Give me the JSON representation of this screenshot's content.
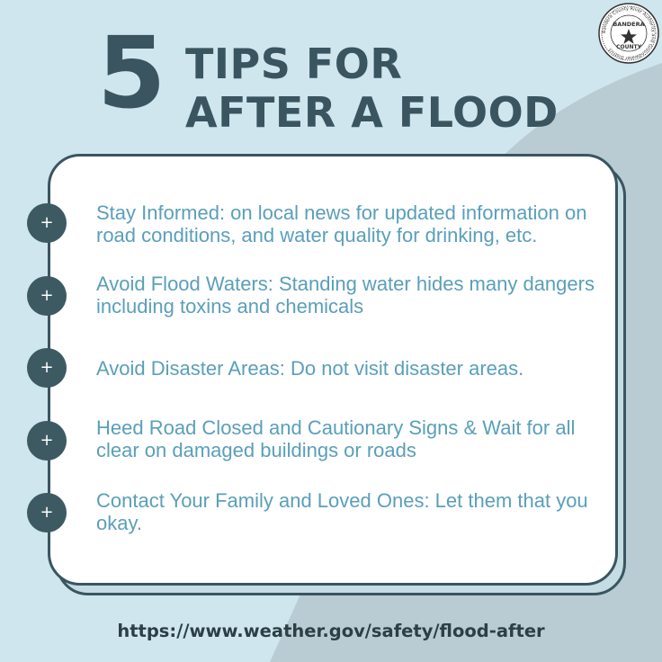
{
  "title": {
    "number": "5",
    "line1": "TIPS FOR",
    "line2": "AFTER A FLOOD"
  },
  "logo": {
    "icon": "county-seal-icon",
    "ring_text": "Bandera County River Authority and Groundwater District",
    "center_line1": "BANDERA",
    "center_line2": "COUNTY"
  },
  "bullet_symbol": "+",
  "tips": [
    {
      "text": "Stay Informed: on local news for updated information on road conditions, and water quality for drinking, etc."
    },
    {
      "text": "Avoid Flood Waters: Standing water hides many dangers including toxins and chemicals"
    },
    {
      "text": "Avoid Disaster Areas: Do not visit disaster areas."
    },
    {
      "text": "Heed Road Closed and Cautionary Signs & Wait for all clear on damaged buildings or roads"
    },
    {
      "text": "Contact Your Family and Loved Ones: Let them that you okay."
    }
  ],
  "footer": {
    "url": "https://www.weather.gov/safety/flood-after"
  },
  "colors": {
    "background_light": "#cfe6ee",
    "background_shape": "#b9ccd3",
    "title": "#3a5560",
    "tip_text": "#5a9fb9",
    "bullet": "#3d5a63",
    "footer": "#2b3f45"
  }
}
